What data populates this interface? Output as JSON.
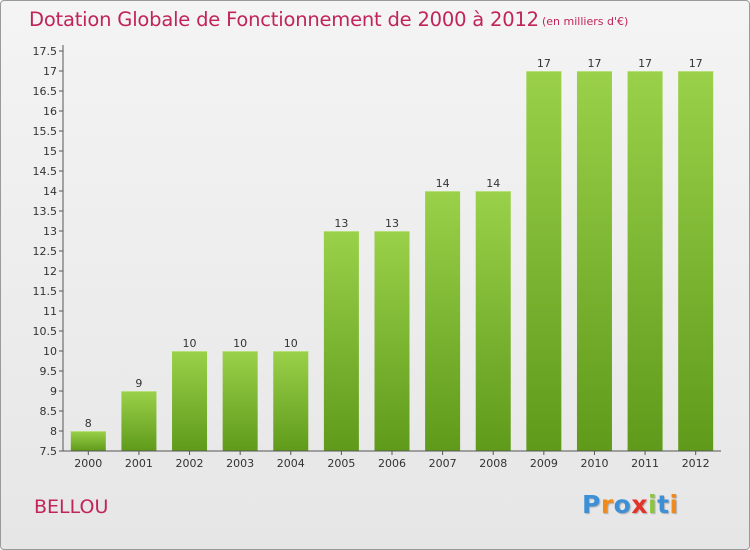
{
  "chart_data": {
    "type": "bar",
    "title": "Dotation Globale de Fonctionnement de 2000 à 2012",
    "subtitle": "(en milliers d'€)",
    "categories": [
      "2000",
      "2001",
      "2002",
      "2003",
      "2004",
      "2005",
      "2006",
      "2007",
      "2008",
      "2009",
      "2010",
      "2011",
      "2012"
    ],
    "values": [
      8,
      9,
      10,
      10,
      10,
      13,
      13,
      14,
      14,
      17,
      17,
      17,
      17
    ],
    "value_labels": [
      "8",
      "9",
      "10",
      "10",
      "10",
      "13",
      "13",
      "14",
      "14",
      "17",
      "17",
      "17",
      "17"
    ],
    "ylim": [
      7.5,
      17.5
    ],
    "yticks": [
      "7.5",
      "8",
      "8.5",
      "9",
      "9.5",
      "10",
      "10.5",
      "11",
      "11.5",
      "12",
      "12.5",
      "13",
      "13.5",
      "14",
      "14.5",
      "15",
      "15.5",
      "16",
      "16.5",
      "17",
      "17.5"
    ],
    "xlabel": "",
    "ylabel": "",
    "grid": false,
    "bar_color": "#7cbb2b"
  },
  "footer": {
    "place_name": "BELLOU",
    "logo_text": "Proxiti",
    "logo_letters": [
      {
        "ch": "P",
        "color": "#3d8fd6"
      },
      {
        "ch": "r",
        "color": "#f08a1c"
      },
      {
        "ch": "o",
        "color": "#3d8fd6"
      },
      {
        "ch": "x",
        "color": "#e2322a"
      },
      {
        "ch": "i",
        "color": "#8cc63f"
      },
      {
        "ch": "t",
        "color": "#3d8fd6"
      },
      {
        "ch": "i",
        "color": "#f08a1c"
      }
    ]
  },
  "colors": {
    "title": "#c0245a",
    "axis": "#555555"
  }
}
